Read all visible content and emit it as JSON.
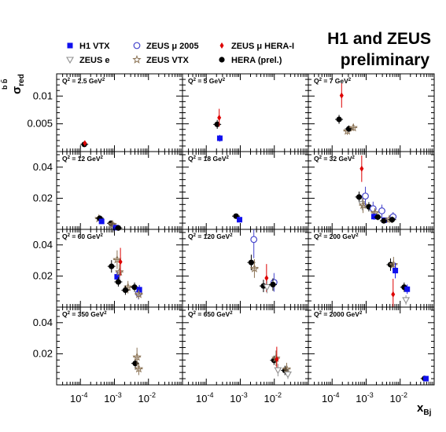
{
  "title": {
    "line1": "H1 and ZEUS",
    "line2": "preliminary"
  },
  "legend": [
    {
      "label": "H1 VTX",
      "marker": "square",
      "color": "#1010ee"
    },
    {
      "label": "ZEUS e",
      "marker": "triangle-down-open",
      "color": "#909090"
    },
    {
      "label": "ZEUS μ 2005",
      "marker": "circle-open",
      "color": "#4444cc"
    },
    {
      "label": "ZEUS VTX",
      "marker": "star-open",
      "color": "#8b7355"
    },
    {
      "label": "ZEUS μ HERA-I",
      "marker": "diamond",
      "color": "#dd0000"
    },
    {
      "label": "HERA (prel.)",
      "marker": "circle",
      "color": "#000000"
    }
  ],
  "axes": {
    "ylabel_main": "σ",
    "ylabel_sub": "red",
    "ylabel_sup": "b b̄",
    "xlabel_main": "x",
    "xlabel_sub": "Bj",
    "xtick_labels": [
      {
        "base": "10",
        "exp": "-4"
      },
      {
        "base": "10",
        "exp": "-3"
      },
      {
        "base": "10",
        "exp": "-2"
      }
    ]
  },
  "chart_data": {
    "type": "scatter",
    "xlabel": "x_Bj",
    "ylabel": "σ_red^bb̄",
    "x_scale": "log",
    "xlim": [
      2e-05,
      0.1
    ],
    "rows": [
      {
        "ylim": [
          0,
          0.014
        ],
        "yticks": [
          {
            "value": 0.005,
            "label": "0.005"
          },
          {
            "value": 0.01,
            "label": "0.01"
          }
        ]
      },
      {
        "ylim": [
          0,
          0.05
        ],
        "yticks": [
          {
            "value": 0.02,
            "label": "0.02"
          },
          {
            "value": 0.04,
            "label": "0.04"
          }
        ]
      },
      {
        "ylim": [
          0,
          0.05
        ],
        "yticks": [
          {
            "value": 0.02,
            "label": "0.02"
          },
          {
            "value": 0.04,
            "label": "0.04"
          }
        ]
      },
      {
        "ylim": [
          0,
          0.05
        ],
        "yticks": [
          {
            "value": 0.02,
            "label": "0.02"
          },
          {
            "value": 0.04,
            "label": "0.04"
          }
        ]
      }
    ],
    "panels": [
      {
        "q2": "2.5",
        "points": [
          {
            "series": "HERA (prel.)",
            "x": 0.00013,
            "y": 0.0013,
            "ey": 0.0003
          },
          {
            "series": "ZEUS μ HERA-I",
            "x": 0.000135,
            "y": 0.0015,
            "ey": 0.0004
          }
        ]
      },
      {
        "q2": "5",
        "points": [
          {
            "series": "HERA (prel.)",
            "x": 0.00021,
            "y": 0.0049,
            "ey": 0.0008
          },
          {
            "series": "ZEUS μ HERA-I",
            "x": 0.00024,
            "y": 0.0061,
            "ey": 0.0016
          },
          {
            "series": "H1 VTX",
            "x": 0.00025,
            "y": 0.0024,
            "ey": 0.0006
          }
        ]
      },
      {
        "q2": "7",
        "points": [
          {
            "series": "HERA (prel.)",
            "x": 0.00016,
            "y": 0.0058,
            "ey": 0.0008
          },
          {
            "series": "ZEUS μ HERA-I",
            "x": 0.00019,
            "y": 0.0101,
            "ey": 0.0022
          },
          {
            "series": "ZEUS VTX",
            "x": 0.00028,
            "y": 0.0037,
            "ey": 0.0007
          },
          {
            "series": "HERA (prel.)",
            "x": 0.00031,
            "y": 0.0041,
            "ey": 0.0006
          },
          {
            "series": "ZEUS VTX",
            "x": 0.00042,
            "y": 0.0043,
            "ey": 0.0006
          }
        ]
      },
      {
        "q2": "12",
        "points": [
          {
            "series": "ZEUS VTX",
            "x": 0.00035,
            "y": 0.0069,
            "ey": 0.0015
          },
          {
            "series": "HERA (prel.)",
            "x": 0.00037,
            "y": 0.0071,
            "ey": 0.0012
          },
          {
            "series": "H1 VTX",
            "x": 0.00042,
            "y": 0.0051,
            "ey": 0.0012
          },
          {
            "series": "HERA (prel.)",
            "x": 0.00079,
            "y": 0.0039,
            "ey": 0.001
          },
          {
            "series": "ZEUS VTX",
            "x": 0.00088,
            "y": 0.0031,
            "ey": 0.0011
          },
          {
            "series": "H1 VTX",
            "x": 0.0011,
            "y": 0.0011,
            "ey": 0.0004
          },
          {
            "series": "HERA (prel.)",
            "x": 0.0013,
            "y": 0.0009,
            "ey": 0.0004
          }
        ]
      },
      {
        "q2": "18",
        "points": [
          {
            "series": "HERA (prel.)",
            "x": 0.00075,
            "y": 0.0085,
            "ey": 0.0012
          },
          {
            "series": "H1 VTX",
            "x": 0.00095,
            "y": 0.0062,
            "ey": 0.0012
          }
        ]
      },
      {
        "q2": "32",
        "points": [
          {
            "series": "ZEUS μ HERA-I",
            "x": 0.00074,
            "y": 0.039,
            "ey": 0.0085
          },
          {
            "series": "HERA (prel.)",
            "x": 0.00062,
            "y": 0.0208,
            "ey": 0.0035
          },
          {
            "series": "ZEUS e",
            "x": 0.00076,
            "y": 0.0163,
            "ey": 0.004
          },
          {
            "series": "ZEUS VTX",
            "x": 0.00081,
            "y": 0.0155,
            "ey": 0.005
          },
          {
            "series": "ZEUS μ 2005",
            "x": 0.00095,
            "y": 0.0214,
            "ey": 0.006
          },
          {
            "series": "HERA (prel.)",
            "x": 0.0012,
            "y": 0.0145,
            "ey": 0.003
          },
          {
            "series": "ZEUS μ 2005",
            "x": 0.0016,
            "y": 0.0133,
            "ey": 0.0045
          },
          {
            "series": "ZEUS VTX",
            "x": 0.0018,
            "y": 0.0106,
            "ey": 0.003
          },
          {
            "series": "H1 VTX",
            "x": 0.0017,
            "y": 0.0082,
            "ey": 0.002
          },
          {
            "series": "HERA (prel.)",
            "x": 0.0022,
            "y": 0.0079,
            "ey": 0.002
          },
          {
            "series": "ZEUS μ 2005",
            "x": 0.0029,
            "y": 0.0119,
            "ey": 0.004
          },
          {
            "series": "H1 VTX",
            "x": 0.0034,
            "y": 0.0059,
            "ey": 0.0015
          },
          {
            "series": "HERA (prel.)",
            "x": 0.0033,
            "y": 0.0055,
            "ey": 0.0015
          },
          {
            "series": "ZEUS VTX",
            "x": 0.0048,
            "y": 0.0065,
            "ey": 0.0025
          },
          {
            "series": "ZEUS μ 2005",
            "x": 0.0062,
            "y": 0.0081,
            "ey": 0.003
          },
          {
            "series": "HERA (prel.)",
            "x": 0.0058,
            "y": 0.0062,
            "ey": 0.002
          }
        ]
      },
      {
        "q2": "60",
        "points": [
          {
            "series": "HERA (prel.)",
            "x": 0.00082,
            "y": 0.0262,
            "ey": 0.004
          },
          {
            "series": "ZEUS VTX",
            "x": 0.0012,
            "y": 0.0305,
            "ey": 0.006
          },
          {
            "series": "H1 VTX",
            "x": 0.0012,
            "y": 0.0195,
            "ey": 0.004
          },
          {
            "series": "HERA (prel.)",
            "x": 0.0013,
            "y": 0.0162,
            "ey": 0.003
          },
          {
            "series": "ZEUS VTX",
            "x": 0.0014,
            "y": 0.0226,
            "ey": 0.005
          },
          {
            "series": "ZEUS μ HERA-I",
            "x": 0.0015,
            "y": 0.0291,
            "ey": 0.009
          },
          {
            "series": "ZEUS VTX",
            "x": 0.0025,
            "y": 0.0128,
            "ey": 0.004
          },
          {
            "series": "HERA (prel.)",
            "x": 0.0021,
            "y": 0.0109,
            "ey": 0.003
          },
          {
            "series": "HERA (prel.)",
            "x": 0.0039,
            "y": 0.0128,
            "ey": 0.003
          },
          {
            "series": "ZEUS μ 2005",
            "x": 0.0051,
            "y": 0.0089,
            "ey": 0.004
          },
          {
            "series": "H1 VTX",
            "x": 0.0054,
            "y": 0.0112,
            "ey": 0.003
          },
          {
            "series": "ZEUS VTX",
            "x": 0.0052,
            "y": 0.0082,
            "ey": 0.003
          }
        ]
      },
      {
        "q2": "120",
        "points": [
          {
            "series": "ZEUS μ 2005",
            "x": 0.0025,
            "y": 0.0435,
            "ey": 0.012
          },
          {
            "series": "HERA (prel.)",
            "x": 0.0021,
            "y": 0.0287,
            "ey": 0.005
          },
          {
            "series": "ZEUS VTX",
            "x": 0.0026,
            "y": 0.0248,
            "ey": 0.006
          },
          {
            "series": "HERA (prel.)",
            "x": 0.0048,
            "y": 0.0136,
            "ey": 0.004
          },
          {
            "series": "ZEUS μ HERA-I",
            "x": 0.0059,
            "y": 0.0187,
            "ey": 0.009
          },
          {
            "series": "ZEUS e",
            "x": 0.0061,
            "y": 0.0129,
            "ey": 0.004
          },
          {
            "series": "ZEUS μ 2005",
            "x": 0.0098,
            "y": 0.0159,
            "ey": 0.006
          },
          {
            "series": "HERA (prel.)",
            "x": 0.0091,
            "y": 0.0145,
            "ey": 0.004
          }
        ]
      },
      {
        "q2": "200",
        "points": [
          {
            "series": "HERA (prel.)",
            "x": 0.0052,
            "y": 0.0273,
            "ey": 0.004
          },
          {
            "series": "ZEUS VTX",
            "x": 0.0064,
            "y": 0.0273,
            "ey": 0.005
          },
          {
            "series": "H1 VTX",
            "x": 0.0072,
            "y": 0.0235,
            "ey": 0.005
          },
          {
            "series": "ZEUS μ HERA-I",
            "x": 0.0062,
            "y": 0.0082,
            "ey": 0.01
          },
          {
            "series": "HERA (prel.)",
            "x": 0.0131,
            "y": 0.0128,
            "ey": 0.003
          },
          {
            "series": "H1 VTX",
            "x": 0.0161,
            "y": 0.0115,
            "ey": 0.003
          },
          {
            "series": "ZEUS e",
            "x": 0.0148,
            "y": 0.0046,
            "ey": 0.003
          }
        ]
      },
      {
        "q2": "350",
        "points": [
          {
            "series": "HERA (prel.)",
            "x": 0.0041,
            "y": 0.0138,
            "ey": 0.004
          },
          {
            "series": "ZEUS VTX",
            "x": 0.0046,
            "y": 0.0179,
            "ey": 0.006
          },
          {
            "series": "ZEUS VTX",
            "x": 0.0052,
            "y": 0.0103,
            "ey": 0.004
          }
        ]
      },
      {
        "q2": "650",
        "points": [
          {
            "series": "HERA (prel.)",
            "x": 0.0098,
            "y": 0.0158,
            "ey": 0.003
          },
          {
            "series": "ZEUS VTX",
            "x": 0.0112,
            "y": 0.0171,
            "ey": 0.005
          },
          {
            "series": "ZEUS μ HERA-I",
            "x": 0.0118,
            "y": 0.0165,
            "ey": 0.008
          },
          {
            "series": "ZEUS e",
            "x": 0.0128,
            "y": 0.0095,
            "ey": 0.004
          },
          {
            "series": "HERA (prel.)",
            "x": 0.0205,
            "y": 0.0093,
            "ey": 0.003
          },
          {
            "series": "ZEUS VTX",
            "x": 0.0231,
            "y": 0.0102,
            "ey": 0.004
          },
          {
            "series": "ZEUS e",
            "x": 0.0251,
            "y": 0.0068,
            "ey": 0.003
          }
        ]
      },
      {
        "q2": "2000",
        "points": [
          {
            "series": "HERA (prel.)",
            "x": 0.052,
            "y": 0.0041,
            "ey": 0.0015
          },
          {
            "series": "H1 VTX",
            "x": 0.057,
            "y": 0.004,
            "ey": 0.0015
          }
        ]
      }
    ]
  }
}
